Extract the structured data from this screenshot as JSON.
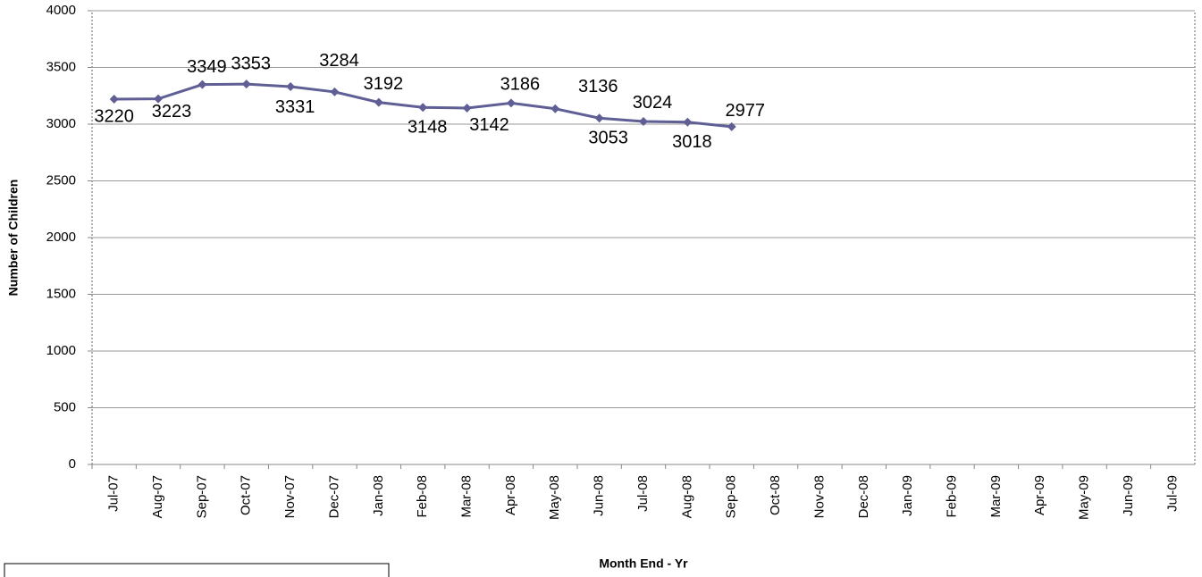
{
  "chart_data": {
    "type": "line",
    "x_label": "Month  End - Yr",
    "y_label": "Number of Children",
    "categories": [
      "Jul-07",
      "Aug-07",
      "Sep-07",
      "Oct-07",
      "Nov-07",
      "Dec-07",
      "Jan-08",
      "Feb-08",
      "Mar-08",
      "Apr-08",
      "May-08",
      "Jun-08",
      "Jul-08",
      "Aug-08",
      "Sep-08",
      "Oct-08",
      "Nov-08",
      "Dec-08",
      "Jan-09",
      "Feb-09",
      "Mar-09",
      "Apr-09",
      "May-09",
      "Jun-09",
      "Jul-09"
    ],
    "series": [
      {
        "color": "#5f5f96",
        "values": [
          3220,
          3223,
          3349,
          3353,
          3331,
          3284,
          3192,
          3148,
          3142,
          3186,
          3136,
          3053,
          3024,
          3018,
          2977,
          null,
          null,
          null,
          null,
          null,
          null,
          null,
          null,
          null,
          null
        ]
      }
    ],
    "ylim": [
      0,
      4000
    ],
    "yticks": [
      0,
      500,
      1000,
      1500,
      2000,
      2500,
      3000,
      3500,
      4000
    ],
    "grid": true
  }
}
